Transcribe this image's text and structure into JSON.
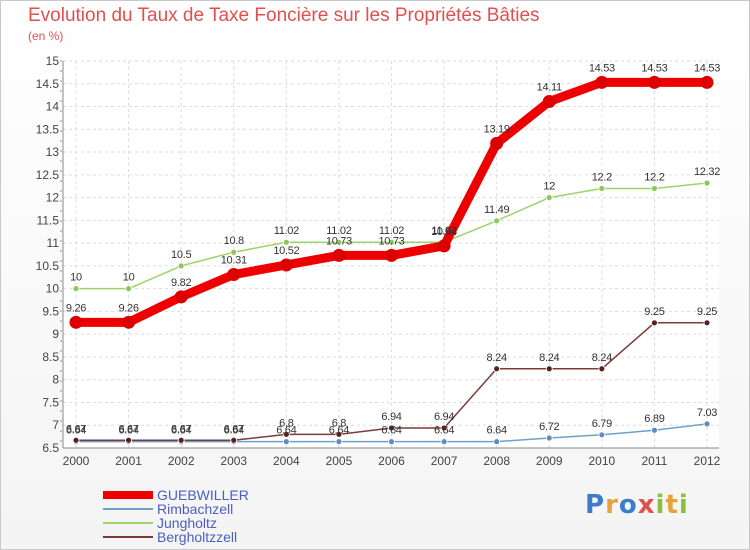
{
  "chart_data": {
    "type": "line",
    "title": "Evolution du Taux de Taxe Foncière sur les Propriétés Bâties",
    "ylabel": "(en %)",
    "xlabel": "",
    "x": [
      "2000",
      "2001",
      "2002",
      "2003",
      "2004",
      "2005",
      "2006",
      "2007",
      "2008",
      "2009",
      "2010",
      "2011",
      "2012"
    ],
    "ylim": [
      6.5,
      15
    ],
    "yticks": [
      "6.5",
      "7",
      "7.5",
      "8",
      "8.5",
      "9",
      "9.5",
      "10",
      "10.5",
      "11",
      "11.5",
      "12",
      "12.5",
      "13",
      "13.5",
      "14",
      "14.5",
      "15"
    ],
    "grid": true,
    "series": [
      {
        "name": "GUEBWILLER",
        "color": "#ee0000",
        "dot": "#dd0000",
        "values": [
          9.26,
          9.26,
          9.82,
          10.31,
          10.52,
          10.73,
          10.73,
          10.94,
          13.19,
          14.11,
          14.53,
          14.53,
          14.53
        ],
        "labels": [
          "9.26",
          "9.26",
          "9.82",
          "10.31",
          "10.52",
          "10.73",
          "10.73",
          "10.94",
          "13.19",
          "14.11",
          "14.53",
          "14.53",
          "14.53"
        ]
      },
      {
        "name": "Rimbachzell",
        "color": "#6fa0cc",
        "dot": "#5b8fc0",
        "values": [
          6.64,
          6.64,
          6.64,
          6.64,
          6.64,
          6.64,
          6.64,
          6.64,
          6.64,
          6.72,
          6.79,
          6.89,
          7.03
        ],
        "labels": [
          "6.64",
          "6.64",
          "6.64",
          "6.64",
          "6.64",
          "6.64",
          "6.64",
          "6.64",
          "6.64",
          "6.72",
          "6.79",
          "6.89",
          "7.03"
        ]
      },
      {
        "name": "Jungholtz",
        "color": "#9cd46a",
        "dot": "#8ac85a",
        "values": [
          10,
          10,
          10.5,
          10.8,
          11.02,
          11.02,
          11.02,
          11.02,
          11.49,
          12,
          12.2,
          12.2,
          12.32
        ],
        "labels": [
          "10",
          "10",
          "10.5",
          "10.8",
          "11.02",
          "11.02",
          "11.02",
          "11.02",
          "11.49",
          "12",
          "12.2",
          "12.2",
          "12.32"
        ]
      },
      {
        "name": "Bergholtzzell",
        "color": "#7a3b3b",
        "dot": "#5a2020",
        "values": [
          6.67,
          6.67,
          6.67,
          6.67,
          6.8,
          6.8,
          6.94,
          6.94,
          8.24,
          8.24,
          8.24,
          9.25,
          9.25
        ],
        "labels": [
          "6.67",
          "6.67",
          "6.67",
          "6.67",
          "6.8",
          "6.8",
          "6.94",
          "6.94",
          "8.24",
          "8.24",
          "8.24",
          "9.25",
          "9.25"
        ]
      }
    ]
  },
  "legend": {
    "items": [
      "GUEBWILLER",
      "Rimbachzell",
      "Jungholtz",
      "Bergholtzzell"
    ]
  },
  "brand": {
    "logo_text": "Proxiti",
    "letters": [
      {
        "ch": "P",
        "color": "#3b7dc8"
      },
      {
        "ch": "r",
        "color": "#e8a23a"
      },
      {
        "ch": "o",
        "color": "#3b7dc8"
      },
      {
        "ch": "x",
        "color": "#e0504f"
      },
      {
        "ch": "i",
        "color": "#8bbf3c"
      },
      {
        "ch": "t",
        "color": "#e8a23a"
      },
      {
        "ch": "i",
        "color": "#8bbf3c"
      }
    ]
  }
}
